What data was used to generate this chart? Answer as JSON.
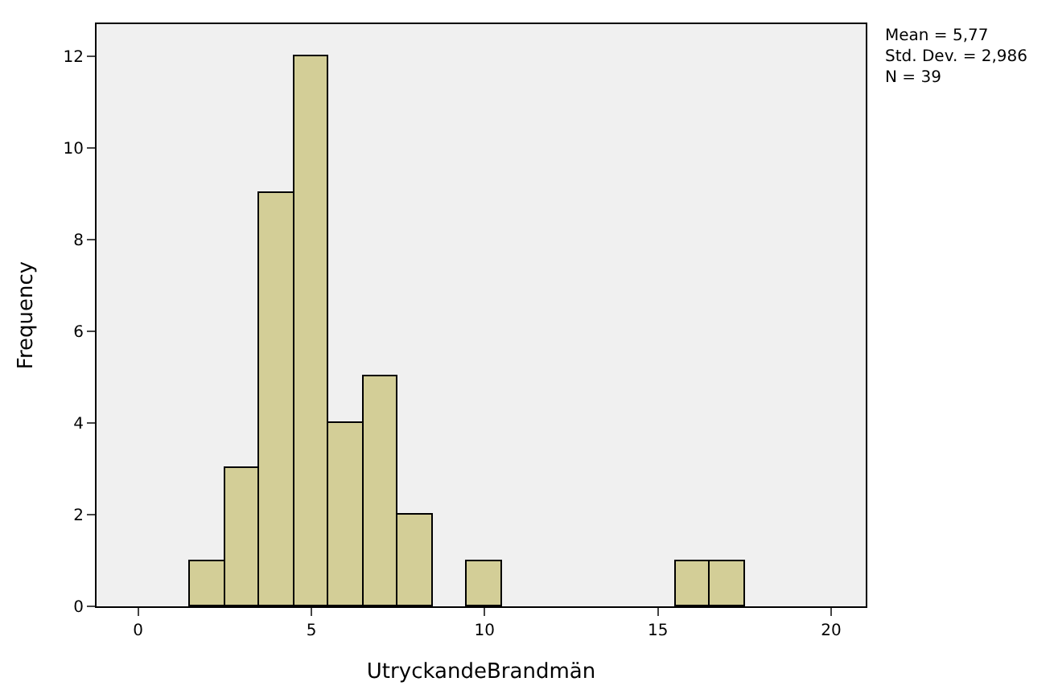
{
  "chart_data": {
    "type": "histogram",
    "bins": [
      1.5,
      2.5,
      3.5,
      4.5,
      5.5,
      6.5,
      7.5,
      8.5,
      9.5,
      10.5,
      11.5,
      12.5,
      13.5,
      14.5,
      15.5,
      16.5,
      17.5
    ],
    "values": [
      1,
      3,
      9,
      12,
      4,
      5,
      2,
      0,
      1,
      0,
      0,
      0,
      0,
      0,
      1,
      1
    ],
    "color": "#d3ce97",
    "xlabel": "UtryckandeBrandmän",
    "ylabel": "Frequency",
    "xlim": [
      -1.2,
      21
    ],
    "xticks": [
      0,
      5,
      10,
      15,
      20
    ],
    "ylim": [
      0,
      12.7
    ],
    "yticks": [
      0,
      2,
      4,
      6,
      8,
      10,
      12
    ],
    "annotations": [
      "Mean = 5,77",
      "Std. Dev. = 2,986",
      "N = 39"
    ],
    "grid": false,
    "legend": false
  }
}
